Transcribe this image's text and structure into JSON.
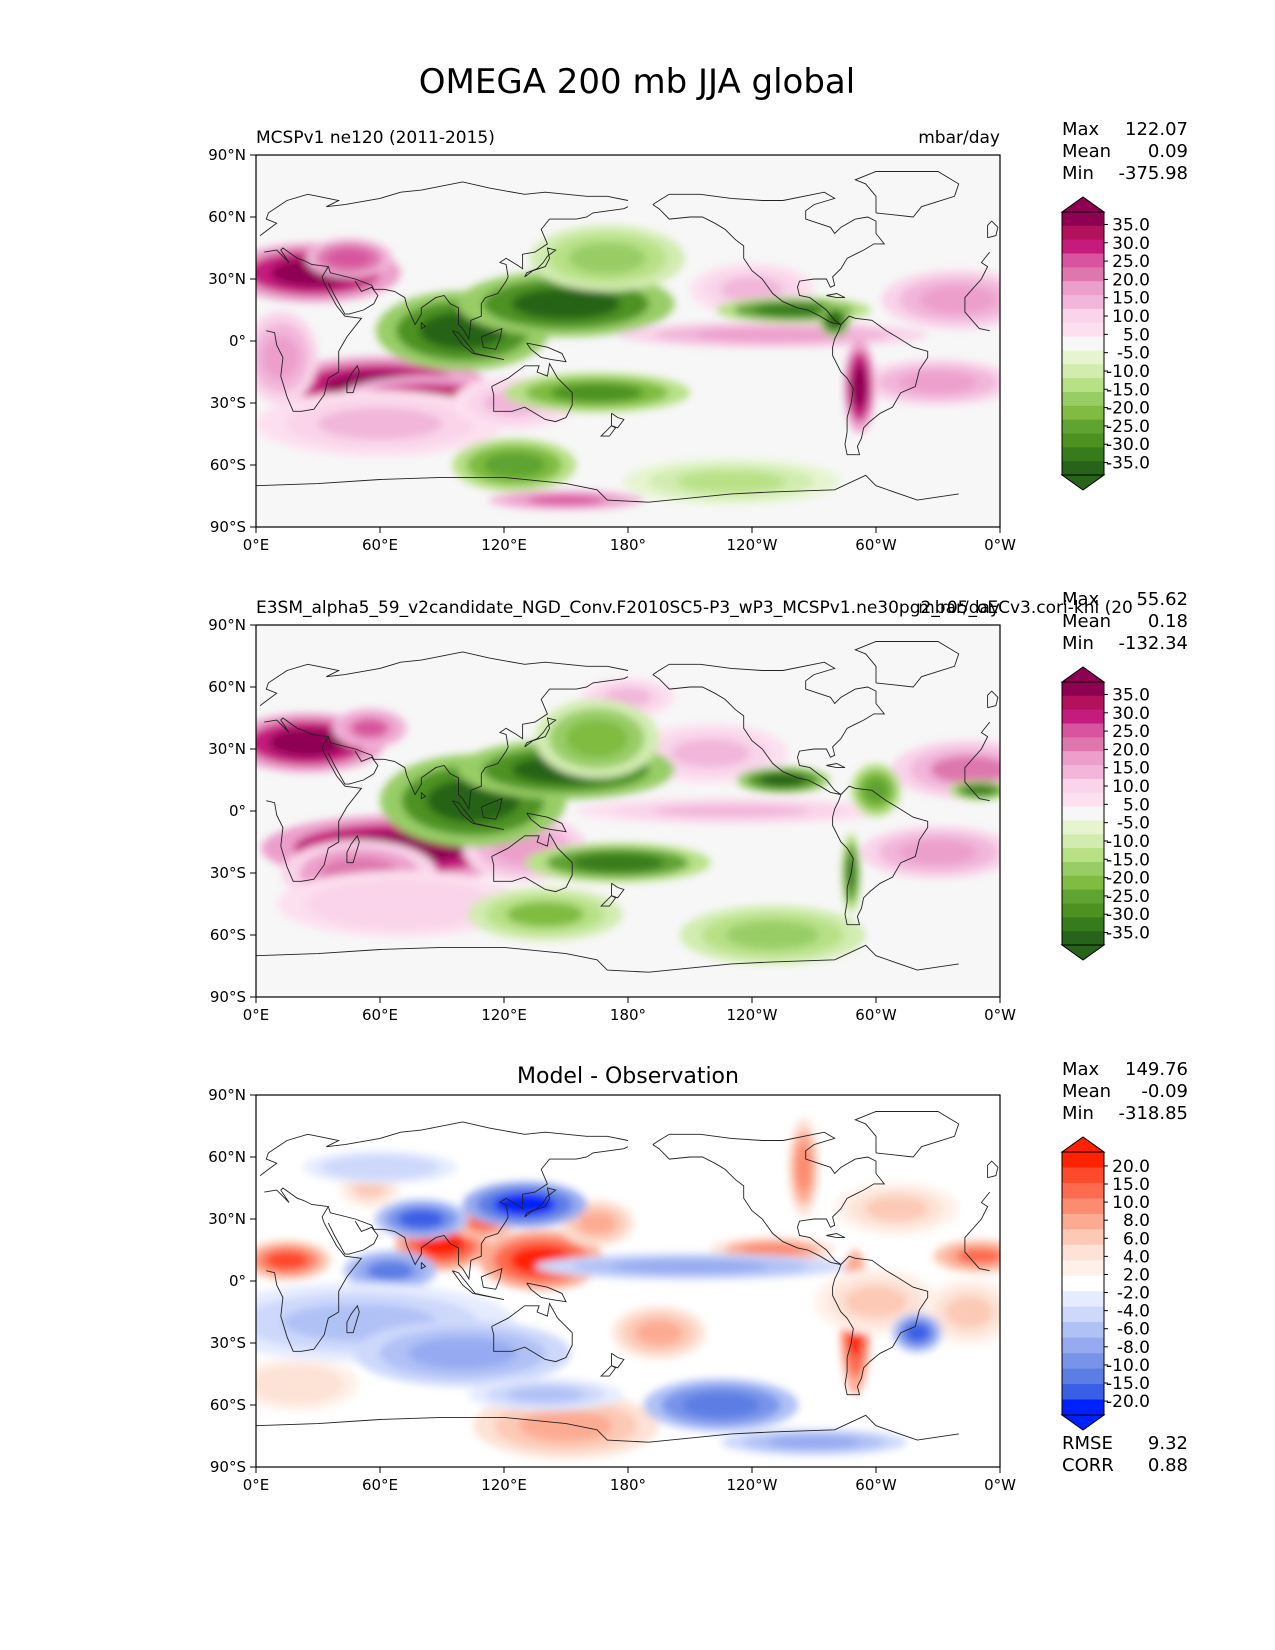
{
  "figure_title": "OMEGA 200 mb JJA global",
  "chart_data": [
    {
      "type": "heatmap",
      "title_left": "MCSPv1 ne120 (2011-2015)",
      "title_right": "mbar/day",
      "title_center": "",
      "stats": [
        {
          "label": "Max",
          "value": "122.07"
        },
        {
          "label": "Mean",
          "value": "0.09"
        },
        {
          "label": "Min",
          "value": "-375.98"
        }
      ],
      "extra_stats": [],
      "x_ticks": [
        "0°E",
        "60°E",
        "120°E",
        "180°",
        "120°W",
        "60°W",
        "0°W"
      ],
      "y_ticks": [
        "90°N",
        "60°N",
        "30°N",
        "0°",
        "30°S",
        "60°S",
        "90°S"
      ],
      "xlim": [
        0,
        360
      ],
      "ylim": [
        -90,
        90
      ],
      "colorbar": {
        "labels": [
          "35.0",
          "30.0",
          "25.0",
          "20.0",
          "15.0",
          "10.0",
          "5.0",
          "-5.0",
          "-10.0",
          "-15.0",
          "-20.0",
          "-25.0",
          "-30.0",
          "-35.0"
        ],
        "colors": [
          "#8e0152",
          "#b1125b",
          "#c51b7d",
          "#d8549e",
          "#de77ae",
          "#ec9fcb",
          "#f1b6da",
          "#f9d4ea",
          "#fde0ef",
          "#f7f7f7",
          "#e6f5d0",
          "#d2ecb0",
          "#b8e186",
          "#98cd66",
          "#7fbc41",
          "#5fa330",
          "#4d9221",
          "#377c1c",
          "#276419"
        ],
        "top_arrow": "#8e0152",
        "bottom_arrow": "#276419"
      },
      "blobs": [
        {
          "lon": 28,
          "lat": 33,
          "rx": 28,
          "ry": 9,
          "value": 34
        },
        {
          "lon": 45,
          "lat": 40,
          "rx": 14,
          "ry": 6,
          "value": 24
        },
        {
          "lon": 60,
          "lat": -22,
          "rx": 35,
          "ry": 9,
          "value": 35
        },
        {
          "lon": 85,
          "lat": -28,
          "rx": 30,
          "ry": 7,
          "value": 30
        },
        {
          "lon": 60,
          "lat": -40,
          "rx": 40,
          "ry": 10,
          "value": 10
        },
        {
          "lon": 12,
          "lat": -8,
          "rx": 12,
          "ry": 14,
          "value": 14
        },
        {
          "lon": 125,
          "lat": -30,
          "rx": 20,
          "ry": 8,
          "value": 12
        },
        {
          "lon": 250,
          "lat": 3,
          "rx": 50,
          "ry": 4,
          "value": 15
        },
        {
          "lon": 340,
          "lat": 20,
          "rx": 25,
          "ry": 9,
          "value": 16
        },
        {
          "lon": 330,
          "lat": -20,
          "rx": 25,
          "ry": 7,
          "value": 14
        },
        {
          "lon": 292,
          "lat": -22,
          "rx": 5,
          "ry": 14,
          "value": 35
        },
        {
          "lon": 240,
          "lat": 25,
          "rx": 20,
          "ry": 8,
          "value": 10
        },
        {
          "lon": 150,
          "lat": -77,
          "rx": 25,
          "ry": 3,
          "value": 22
        },
        {
          "lon": 100,
          "lat": 5,
          "rx": 28,
          "ry": 12,
          "value": -35
        },
        {
          "lon": 150,
          "lat": 18,
          "rx": 35,
          "ry": 10,
          "value": -35
        },
        {
          "lon": 170,
          "lat": 40,
          "rx": 25,
          "ry": 10,
          "value": -15
        },
        {
          "lon": 165,
          "lat": -25,
          "rx": 30,
          "ry": 6,
          "value": -28
        },
        {
          "lon": 260,
          "lat": 15,
          "rx": 25,
          "ry": 4,
          "value": -30
        },
        {
          "lon": 280,
          "lat": 10,
          "rx": 5,
          "ry": 5,
          "value": -35
        },
        {
          "lon": 125,
          "lat": -60,
          "rx": 20,
          "ry": 8,
          "value": -25
        },
        {
          "lon": 230,
          "lat": -68,
          "rx": 35,
          "ry": 7,
          "value": -12
        }
      ]
    },
    {
      "type": "heatmap",
      "title_left": "E3SM_alpha5_59_v2candidate_NGD_Conv.F2010SC5-P3_wP3_MCSPv1.ne30pg2_r05_oECv3.cori-knl (20",
      "title_right": "mbar/day",
      "title_center": "",
      "stats": [
        {
          "label": "Max",
          "value": "55.62"
        },
        {
          "label": "Mean",
          "value": "0.18"
        },
        {
          "label": "Min",
          "value": "-132.34"
        }
      ],
      "extra_stats": [],
      "x_ticks": [
        "0°E",
        "60°E",
        "120°E",
        "180°",
        "120°W",
        "60°W",
        "0°W"
      ],
      "y_ticks": [
        "90°N",
        "60°N",
        "30°N",
        "0°",
        "30°S",
        "60°S",
        "90°S"
      ],
      "xlim": [
        0,
        360
      ],
      "ylim": [
        -90,
        90
      ],
      "colorbar": {
        "labels": [
          "35.0",
          "30.0",
          "25.0",
          "20.0",
          "15.0",
          "10.0",
          "5.0",
          "-5.0",
          "-10.0",
          "-15.0",
          "-20.0",
          "-25.0",
          "-30.0",
          "-35.0"
        ],
        "colors": [
          "#8e0152",
          "#b1125b",
          "#c51b7d",
          "#d8549e",
          "#de77ae",
          "#ec9fcb",
          "#f1b6da",
          "#f9d4ea",
          "#fde0ef",
          "#f7f7f7",
          "#e6f5d0",
          "#d2ecb0",
          "#b8e186",
          "#98cd66",
          "#7fbc41",
          "#5fa330",
          "#4d9221",
          "#377c1c",
          "#276419"
        ],
        "top_arrow": "#8e0152",
        "bottom_arrow": "#276419"
      },
      "blobs": [
        {
          "lon": 25,
          "lat": 33,
          "rx": 25,
          "ry": 9,
          "value": 35
        },
        {
          "lon": 55,
          "lat": 40,
          "rx": 12,
          "ry": 6,
          "value": 22
        },
        {
          "lon": 70,
          "lat": -18,
          "rx": 45,
          "ry": 10,
          "value": 35
        },
        {
          "lon": 50,
          "lat": -30,
          "rx": 25,
          "ry": 10,
          "value": 20
        },
        {
          "lon": 70,
          "lat": -45,
          "rx": 40,
          "ry": 10,
          "value": 8
        },
        {
          "lon": 130,
          "lat": -18,
          "rx": 20,
          "ry": 10,
          "value": 14
        },
        {
          "lon": 230,
          "lat": 0,
          "rx": 50,
          "ry": 4,
          "value": 12
        },
        {
          "lon": 345,
          "lat": 20,
          "rx": 25,
          "ry": 9,
          "value": 18
        },
        {
          "lon": 330,
          "lat": -20,
          "rx": 25,
          "ry": 8,
          "value": 16
        },
        {
          "lon": 220,
          "lat": 28,
          "rx": 25,
          "ry": 9,
          "value": 12
        },
        {
          "lon": 180,
          "lat": 55,
          "rx": 15,
          "ry": 6,
          "value": 10
        },
        {
          "lon": 105,
          "lat": 5,
          "rx": 30,
          "ry": 14,
          "value": -35
        },
        {
          "lon": 150,
          "lat": 20,
          "rx": 35,
          "ry": 9,
          "value": -35
        },
        {
          "lon": 165,
          "lat": 35,
          "rx": 20,
          "ry": 12,
          "value": -20
        },
        {
          "lon": 175,
          "lat": -25,
          "rx": 30,
          "ry": 6,
          "value": -30
        },
        {
          "lon": 255,
          "lat": 15,
          "rx": 15,
          "ry": 4,
          "value": -35
        },
        {
          "lon": 300,
          "lat": 10,
          "rx": 8,
          "ry": 8,
          "value": -25
        },
        {
          "lon": 350,
          "lat": 10,
          "rx": 10,
          "ry": 3,
          "value": -30
        },
        {
          "lon": 288,
          "lat": -30,
          "rx": 3,
          "ry": 12,
          "value": -30
        },
        {
          "lon": 140,
          "lat": -50,
          "rx": 25,
          "ry": 8,
          "value": -18
        },
        {
          "lon": 250,
          "lat": -60,
          "rx": 30,
          "ry": 9,
          "value": -15
        }
      ]
    },
    {
      "type": "heatmap",
      "title_left": "",
      "title_right": "",
      "title_center": "Model - Observation",
      "stats": [
        {
          "label": "Max",
          "value": "149.76"
        },
        {
          "label": "Mean",
          "value": "-0.09"
        },
        {
          "label": "Min",
          "value": "-318.85"
        }
      ],
      "extra_stats": [
        {
          "label": "RMSE",
          "value": "9.32"
        },
        {
          "label": "CORR",
          "value": "0.88"
        }
      ],
      "x_ticks": [
        "0°E",
        "60°E",
        "120°E",
        "180°",
        "120°W",
        "60°W",
        "0°W"
      ],
      "y_ticks": [
        "90°N",
        "60°N",
        "30°N",
        "0°",
        "30°S",
        "60°S",
        "90°S"
      ],
      "xlim": [
        0,
        360
      ],
      "ylim": [
        -90,
        90
      ],
      "colorbar": {
        "labels": [
          "20.0",
          "15.0",
          "10.0",
          "8.0",
          "6.0",
          "4.0",
          "2.0",
          "-2.0",
          "-4.0",
          "-6.0",
          "-8.0",
          "-10.0",
          "-15.0",
          "-20.0"
        ],
        "colors": [
          "#ff2200",
          "#fe4a2c",
          "#fd6a4e",
          "#fc8b70",
          "#fcab93",
          "#fcc9b5",
          "#fde2d6",
          "#fff1ea",
          "#ffffff",
          "#e6ecff",
          "#cdd8fb",
          "#b0c1f6",
          "#95aaf0",
          "#7894ea",
          "#5b7de4",
          "#3a5fe6",
          "#0021ff"
        ],
        "top_arrow": "#ff2200",
        "bottom_arrow": "#0021ff"
      },
      "blobs": [
        {
          "lon": 15,
          "lat": 10,
          "rx": 14,
          "ry": 6,
          "value": 18
        },
        {
          "lon": 90,
          "lat": 18,
          "rx": 15,
          "ry": 8,
          "value": 20
        },
        {
          "lon": 138,
          "lat": 10,
          "rx": 20,
          "ry": 9,
          "value": 20
        },
        {
          "lon": 110,
          "lat": 28,
          "rx": 10,
          "ry": 5,
          "value": 15
        },
        {
          "lon": 165,
          "lat": 28,
          "rx": 12,
          "ry": 7,
          "value": 10
        },
        {
          "lon": 250,
          "lat": 15,
          "rx": 20,
          "ry": 4,
          "value": 12
        },
        {
          "lon": 350,
          "lat": 12,
          "rx": 15,
          "ry": 5,
          "value": 15
        },
        {
          "lon": 290,
          "lat": -20,
          "rx": 5,
          "ry": 22,
          "value": 20
        },
        {
          "lon": 195,
          "lat": -25,
          "rx": 15,
          "ry": 8,
          "value": 10
        },
        {
          "lon": 150,
          "lat": -70,
          "rx": 30,
          "ry": 10,
          "value": 10
        },
        {
          "lon": 300,
          "lat": -10,
          "rx": 20,
          "ry": 10,
          "value": 8
        },
        {
          "lon": 265,
          "lat": 55,
          "rx": 5,
          "ry": 15,
          "value": 12
        },
        {
          "lon": 310,
          "lat": 35,
          "rx": 20,
          "ry": 8,
          "value": 8
        },
        {
          "lon": 345,
          "lat": -15,
          "rx": 15,
          "ry": 10,
          "value": 8
        },
        {
          "lon": 20,
          "lat": -50,
          "rx": 20,
          "ry": 8,
          "value": 6
        },
        {
          "lon": 55,
          "lat": 45,
          "rx": 10,
          "ry": 6,
          "value": 8
        },
        {
          "lon": 65,
          "lat": 5,
          "rx": 15,
          "ry": 6,
          "value": -14
        },
        {
          "lon": 130,
          "lat": 37,
          "rx": 20,
          "ry": 7,
          "value": -20
        },
        {
          "lon": 80,
          "lat": 30,
          "rx": 15,
          "ry": 6,
          "value": -18
        },
        {
          "lon": 50,
          "lat": -20,
          "rx": 50,
          "ry": 12,
          "value": -8
        },
        {
          "lon": 100,
          "lat": -35,
          "rx": 35,
          "ry": 10,
          "value": -9
        },
        {
          "lon": 210,
          "lat": 7,
          "rx": 50,
          "ry": 4,
          "value": -10
        },
        {
          "lon": 225,
          "lat": -60,
          "rx": 25,
          "ry": 8,
          "value": -15
        },
        {
          "lon": 320,
          "lat": -25,
          "rx": 8,
          "ry": 6,
          "value": -18
        },
        {
          "lon": 60,
          "lat": 55,
          "rx": 25,
          "ry": 5,
          "value": -5
        },
        {
          "lon": 270,
          "lat": -78,
          "rx": 30,
          "ry": 4,
          "value": -10
        },
        {
          "lon": 140,
          "lat": -55,
          "rx": 25,
          "ry": 5,
          "value": -8
        }
      ]
    }
  ]
}
